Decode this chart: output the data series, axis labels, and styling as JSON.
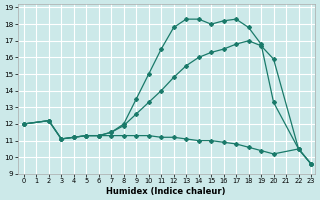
{
  "xlabel": "Humidex (Indice chaleur)",
  "bg_color": "#cce9e9",
  "grid_color": "#ffffff",
  "line_color": "#1a7a6a",
  "xlim": [
    -0.5,
    23.3
  ],
  "ylim": [
    9,
    19.2
  ],
  "xticks": [
    0,
    1,
    2,
    3,
    4,
    5,
    6,
    7,
    8,
    9,
    10,
    11,
    12,
    13,
    14,
    15,
    16,
    17,
    18,
    19,
    20,
    21,
    22,
    23
  ],
  "yticks": [
    9,
    10,
    11,
    12,
    13,
    14,
    15,
    16,
    17,
    18,
    19
  ],
  "line_upper_x": [
    0,
    2,
    3,
    4,
    5,
    6,
    7,
    8,
    9,
    10,
    11,
    12,
    13,
    14,
    15,
    16,
    17,
    18,
    19,
    20,
    22,
    23
  ],
  "line_upper_y": [
    12,
    12.2,
    11.1,
    11.2,
    11.3,
    11.3,
    11.5,
    12.0,
    13.5,
    15.0,
    16.5,
    17.8,
    18.3,
    18.3,
    18.0,
    18.2,
    18.3,
    17.8,
    16.8,
    13.3,
    10.5,
    9.6
  ],
  "line_mid_x": [
    0,
    2,
    3,
    4,
    5,
    6,
    7,
    8,
    9,
    10,
    11,
    12,
    13,
    14,
    15,
    16,
    17,
    18,
    19,
    20,
    22,
    23
  ],
  "line_mid_y": [
    12,
    12.2,
    11.1,
    11.2,
    11.3,
    11.3,
    11.5,
    11.9,
    12.6,
    13.3,
    14.0,
    14.8,
    15.5,
    16.0,
    16.3,
    16.5,
    16.8,
    17.0,
    16.7,
    15.9,
    10.5,
    9.6
  ],
  "line_low_x": [
    0,
    2,
    3,
    4,
    5,
    6,
    7,
    8,
    9,
    10,
    11,
    12,
    13,
    14,
    15,
    16,
    17,
    18,
    19,
    20,
    22,
    23
  ],
  "line_low_y": [
    12,
    12.2,
    11.1,
    11.2,
    11.3,
    11.3,
    11.3,
    11.3,
    11.3,
    11.3,
    11.2,
    11.2,
    11.1,
    11.0,
    11.0,
    10.9,
    10.8,
    10.6,
    10.4,
    10.2,
    10.5,
    9.6
  ]
}
